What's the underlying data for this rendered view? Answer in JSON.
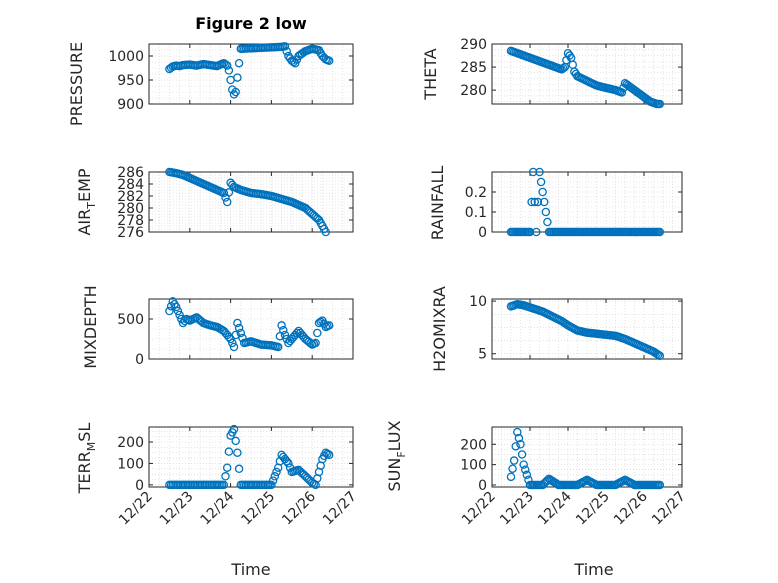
{
  "title": "Figure 2 low",
  "xlabel": "Time",
  "x_ticks": [
    "12/22",
    "12/23",
    "12/24",
    "12/25",
    "12/26",
    "12/27"
  ],
  "marker_color": "#0072BD",
  "chart_data": [
    {
      "type": "scatter",
      "ylabel": "PRESSURE",
      "ylim": [
        900,
        1025
      ],
      "yticks": [
        "900",
        "950",
        "1000"
      ],
      "ytick_values": [
        900,
        950,
        1000
      ],
      "grid": true,
      "x": [
        "12/22 12:00",
        "12/22 14:00",
        "12/22 16:00",
        "12/22 18:00",
        "12/22 20:00",
        "12/23 00:00",
        "12/23 04:00",
        "12/23 08:00",
        "12/23 12:00",
        "12/23 16:00",
        "12/23 20:00",
        "12/23 22:00",
        "12/23 23:00",
        "12/24 00:00",
        "12/24 01:00",
        "12/24 02:00",
        "12/24 03:00",
        "12/24 06:00",
        "12/24 12:00",
        "12/24 18:00",
        "12/25 00:00",
        "12/25 06:00",
        "12/25 08:00",
        "12/25 10:00",
        "12/25 12:00",
        "12/25 14:00",
        "12/25 16:00",
        "12/25 20:00",
        "12/26 00:00",
        "12/26 04:00",
        "12/26 06:00",
        "12/26 08:00",
        "12/26 10:00"
      ],
      "y": [
        973,
        978,
        980,
        979,
        981,
        982,
        980,
        983,
        981,
        979,
        985,
        980,
        970,
        950,
        930,
        920,
        925,
        1015,
        1016,
        1017,
        1018,
        1019,
        1020,
        1000,
        990,
        985,
        1000,
        1010,
        1015,
        1012,
        1000,
        993,
        990
      ]
    },
    {
      "type": "scatter",
      "ylabel": "THETA",
      "ylim": [
        277,
        290
      ],
      "yticks": [
        "280",
        "285",
        "290"
      ],
      "ytick_values": [
        280,
        285,
        290
      ],
      "grid": true,
      "x": [
        "12/22 12:00",
        "12/22 16:00",
        "12/22 20:00",
        "12/23 00:00",
        "12/23 04:00",
        "12/23 08:00",
        "12/23 12:00",
        "12/23 16:00",
        "12/23 20:00",
        "12/23 22:00",
        "12/24 00:00",
        "12/24 02:00",
        "12/24 04:00",
        "12/24 06:00",
        "12/24 12:00",
        "12/24 18:00",
        "12/25 00:00",
        "12/25 06:00",
        "12/25 10:00",
        "12/25 12:00",
        "12/25 16:00",
        "12/25 20:00",
        "12/26 00:00",
        "12/26 04:00",
        "12/26 08:00",
        "12/26 10:00"
      ],
      "y": [
        288.5,
        288,
        287.5,
        287,
        286.5,
        286,
        285.5,
        285,
        284.5,
        285,
        288,
        287,
        284,
        283,
        282,
        281,
        280.5,
        280,
        279.5,
        281.5,
        280.5,
        279.5,
        278.5,
        277.5,
        277,
        277
      ]
    },
    {
      "type": "scatter",
      "ylabel": "AIR_TEMP",
      "ylim": [
        276,
        286
      ],
      "yticks": [
        "276",
        "278",
        "280",
        "282",
        "284",
        "286"
      ],
      "ytick_values": [
        276,
        278,
        280,
        282,
        284,
        286
      ],
      "grid": true,
      "x": [
        "12/22 12:00",
        "12/22 16:00",
        "12/22 20:00",
        "12/23 00:00",
        "12/23 04:00",
        "12/23 08:00",
        "12/23 12:00",
        "12/23 16:00",
        "12/23 20:00",
        "12/23 22:00",
        "12/24 00:00",
        "12/24 02:00",
        "12/24 06:00",
        "12/24 12:00",
        "12/24 18:00",
        "12/25 00:00",
        "12/25 06:00",
        "12/25 12:00",
        "12/25 16:00",
        "12/25 20:00",
        "12/26 00:00",
        "12/26 04:00",
        "12/26 06:00",
        "12/26 08:00"
      ],
      "y": [
        286,
        285.8,
        285.5,
        285,
        284.5,
        284,
        283.5,
        283,
        282.5,
        281,
        284.2,
        283.5,
        283,
        282.5,
        282.3,
        282,
        281.5,
        281,
        280.5,
        280,
        279,
        278,
        277,
        276
      ]
    },
    {
      "type": "scatter",
      "ylabel": "RAINFALL",
      "ylim": [
        0,
        0.3
      ],
      "yticks": [
        "0",
        "0.1",
        "0.2"
      ],
      "ytick_values": [
        0,
        0.1,
        0.2
      ],
      "grid": true,
      "x": [
        "12/22 12:00",
        "12/22 18:00",
        "12/23 00:00",
        "12/23 02:00",
        "12/23 04:00",
        "12/23 06:00",
        "12/23 12:00",
        "12/23 18:00",
        "12/24 00:00",
        "12/24 06:00",
        "12/24 12:00",
        "12/24 18:00",
        "12/25 00:00",
        "12/25 06:00",
        "12/25 12:00",
        "12/25 18:00",
        "12/26 00:00",
        "12/26 06:00",
        "12/26 10:00"
      ],
      "y": [
        0,
        0,
        0,
        0.3,
        0,
        0.3,
        0,
        0,
        0,
        0,
        0,
        0,
        0,
        0,
        0,
        0,
        0,
        0,
        0
      ]
    },
    {
      "type": "scatter",
      "ylabel": "MIXDEPTH",
      "ylim": [
        0,
        750
      ],
      "yticks": [
        "0",
        "500"
      ],
      "ytick_values": [
        0,
        500
      ],
      "grid": true,
      "x": [
        "12/22 12:00",
        "12/22 14:00",
        "12/22 16:00",
        "12/22 18:00",
        "12/22 20:00",
        "12/22 22:00",
        "12/23 00:00",
        "12/23 04:00",
        "12/23 08:00",
        "12/23 12:00",
        "12/23 16:00",
        "12/23 20:00",
        "12/24 00:00",
        "12/24 02:00",
        "12/24 04:00",
        "12/24 08:00",
        "12/24 12:00",
        "12/24 18:00",
        "12/25 00:00",
        "12/25 04:00",
        "12/25 06:00",
        "12/25 08:00",
        "12/25 10:00",
        "12/25 12:00",
        "12/25 16:00",
        "12/25 20:00",
        "12/26 00:00",
        "12/26 02:00",
        "12/26 04:00",
        "12/26 06:00",
        "12/26 08:00",
        "12/26 10:00"
      ],
      "y": [
        600,
        720,
        650,
        550,
        450,
        500,
        480,
        520,
        450,
        420,
        400,
        350,
        250,
        150,
        450,
        200,
        220,
        180,
        170,
        150,
        420,
        300,
        200,
        250,
        350,
        250,
        180,
        200,
        450,
        480,
        400,
        420
      ]
    },
    {
      "type": "scatter",
      "ylabel": "H2OMIXRA",
      "ylim": [
        4.5,
        10.2
      ],
      "yticks": [
        "5",
        "10"
      ],
      "ytick_values": [
        5,
        10
      ],
      "grid": true,
      "x": [
        "12/22 12:00",
        "12/22 16:00",
        "12/22 20:00",
        "12/23 00:00",
        "12/23 04:00",
        "12/23 08:00",
        "12/23 12:00",
        "12/23 16:00",
        "12/23 20:00",
        "12/24 00:00",
        "12/24 06:00",
        "12/24 12:00",
        "12/24 18:00",
        "12/25 00:00",
        "12/25 06:00",
        "12/25 12:00",
        "12/25 18:00",
        "12/26 00:00",
        "12/26 06:00",
        "12/26 10:00"
      ],
      "y": [
        9.5,
        9.7,
        9.6,
        9.4,
        9.2,
        9,
        8.7,
        8.4,
        8.1,
        7.7,
        7.2,
        7,
        6.9,
        6.8,
        6.7,
        6.4,
        6,
        5.6,
        5.2,
        4.8
      ]
    },
    {
      "type": "scatter",
      "ylabel": "TERR_MSL",
      "ylim": [
        -10,
        270
      ],
      "yticks": [
        "0",
        "100",
        "200"
      ],
      "ytick_values": [
        0,
        100,
        200
      ],
      "grid": true,
      "x": [
        "12/22 12:00",
        "12/22 18:00",
        "12/23 00:00",
        "12/23 06:00",
        "12/23 12:00",
        "12/23 18:00",
        "12/23 20:00",
        "12/23 22:00",
        "12/24 00:00",
        "12/24 02:00",
        "12/24 04:00",
        "12/24 06:00",
        "12/24 12:00",
        "12/24 18:00",
        "12/25 00:00",
        "12/25 04:00",
        "12/25 06:00",
        "12/25 08:00",
        "12/25 10:00",
        "12/25 12:00",
        "12/25 16:00",
        "12/25 20:00",
        "12/26 00:00",
        "12/26 02:00",
        "12/26 04:00",
        "12/26 06:00",
        "12/26 08:00",
        "12/26 10:00"
      ],
      "y": [
        0,
        0,
        0,
        0,
        0,
        0,
        0,
        80,
        230,
        260,
        150,
        0,
        0,
        0,
        0,
        80,
        140,
        120,
        100,
        60,
        70,
        40,
        10,
        0,
        60,
        120,
        150,
        140
      ]
    },
    {
      "type": "scatter",
      "ylabel": "SUN_FLUX",
      "ylim": [
        -10,
        285
      ],
      "yticks": [
        "0",
        "100",
        "200"
      ],
      "ytick_values": [
        0,
        100,
        200
      ],
      "grid": true,
      "x": [
        "12/22 12:00",
        "12/22 14:00",
        "12/22 16:00",
        "12/22 18:00",
        "12/22 20:00",
        "12/22 22:00",
        "12/23 00:00",
        "12/23 04:00",
        "12/23 08:00",
        "12/23 12:00",
        "12/23 18:00",
        "12/24 00:00",
        "12/24 06:00",
        "12/24 12:00",
        "12/24 18:00",
        "12/25 00:00",
        "12/25 06:00",
        "12/25 12:00",
        "12/25 18:00",
        "12/26 00:00",
        "12/26 06:00",
        "12/26 10:00"
      ],
      "y": [
        40,
        120,
        260,
        200,
        100,
        50,
        0,
        0,
        0,
        30,
        0,
        0,
        0,
        25,
        0,
        0,
        0,
        25,
        0,
        0,
        0,
        0
      ]
    }
  ]
}
